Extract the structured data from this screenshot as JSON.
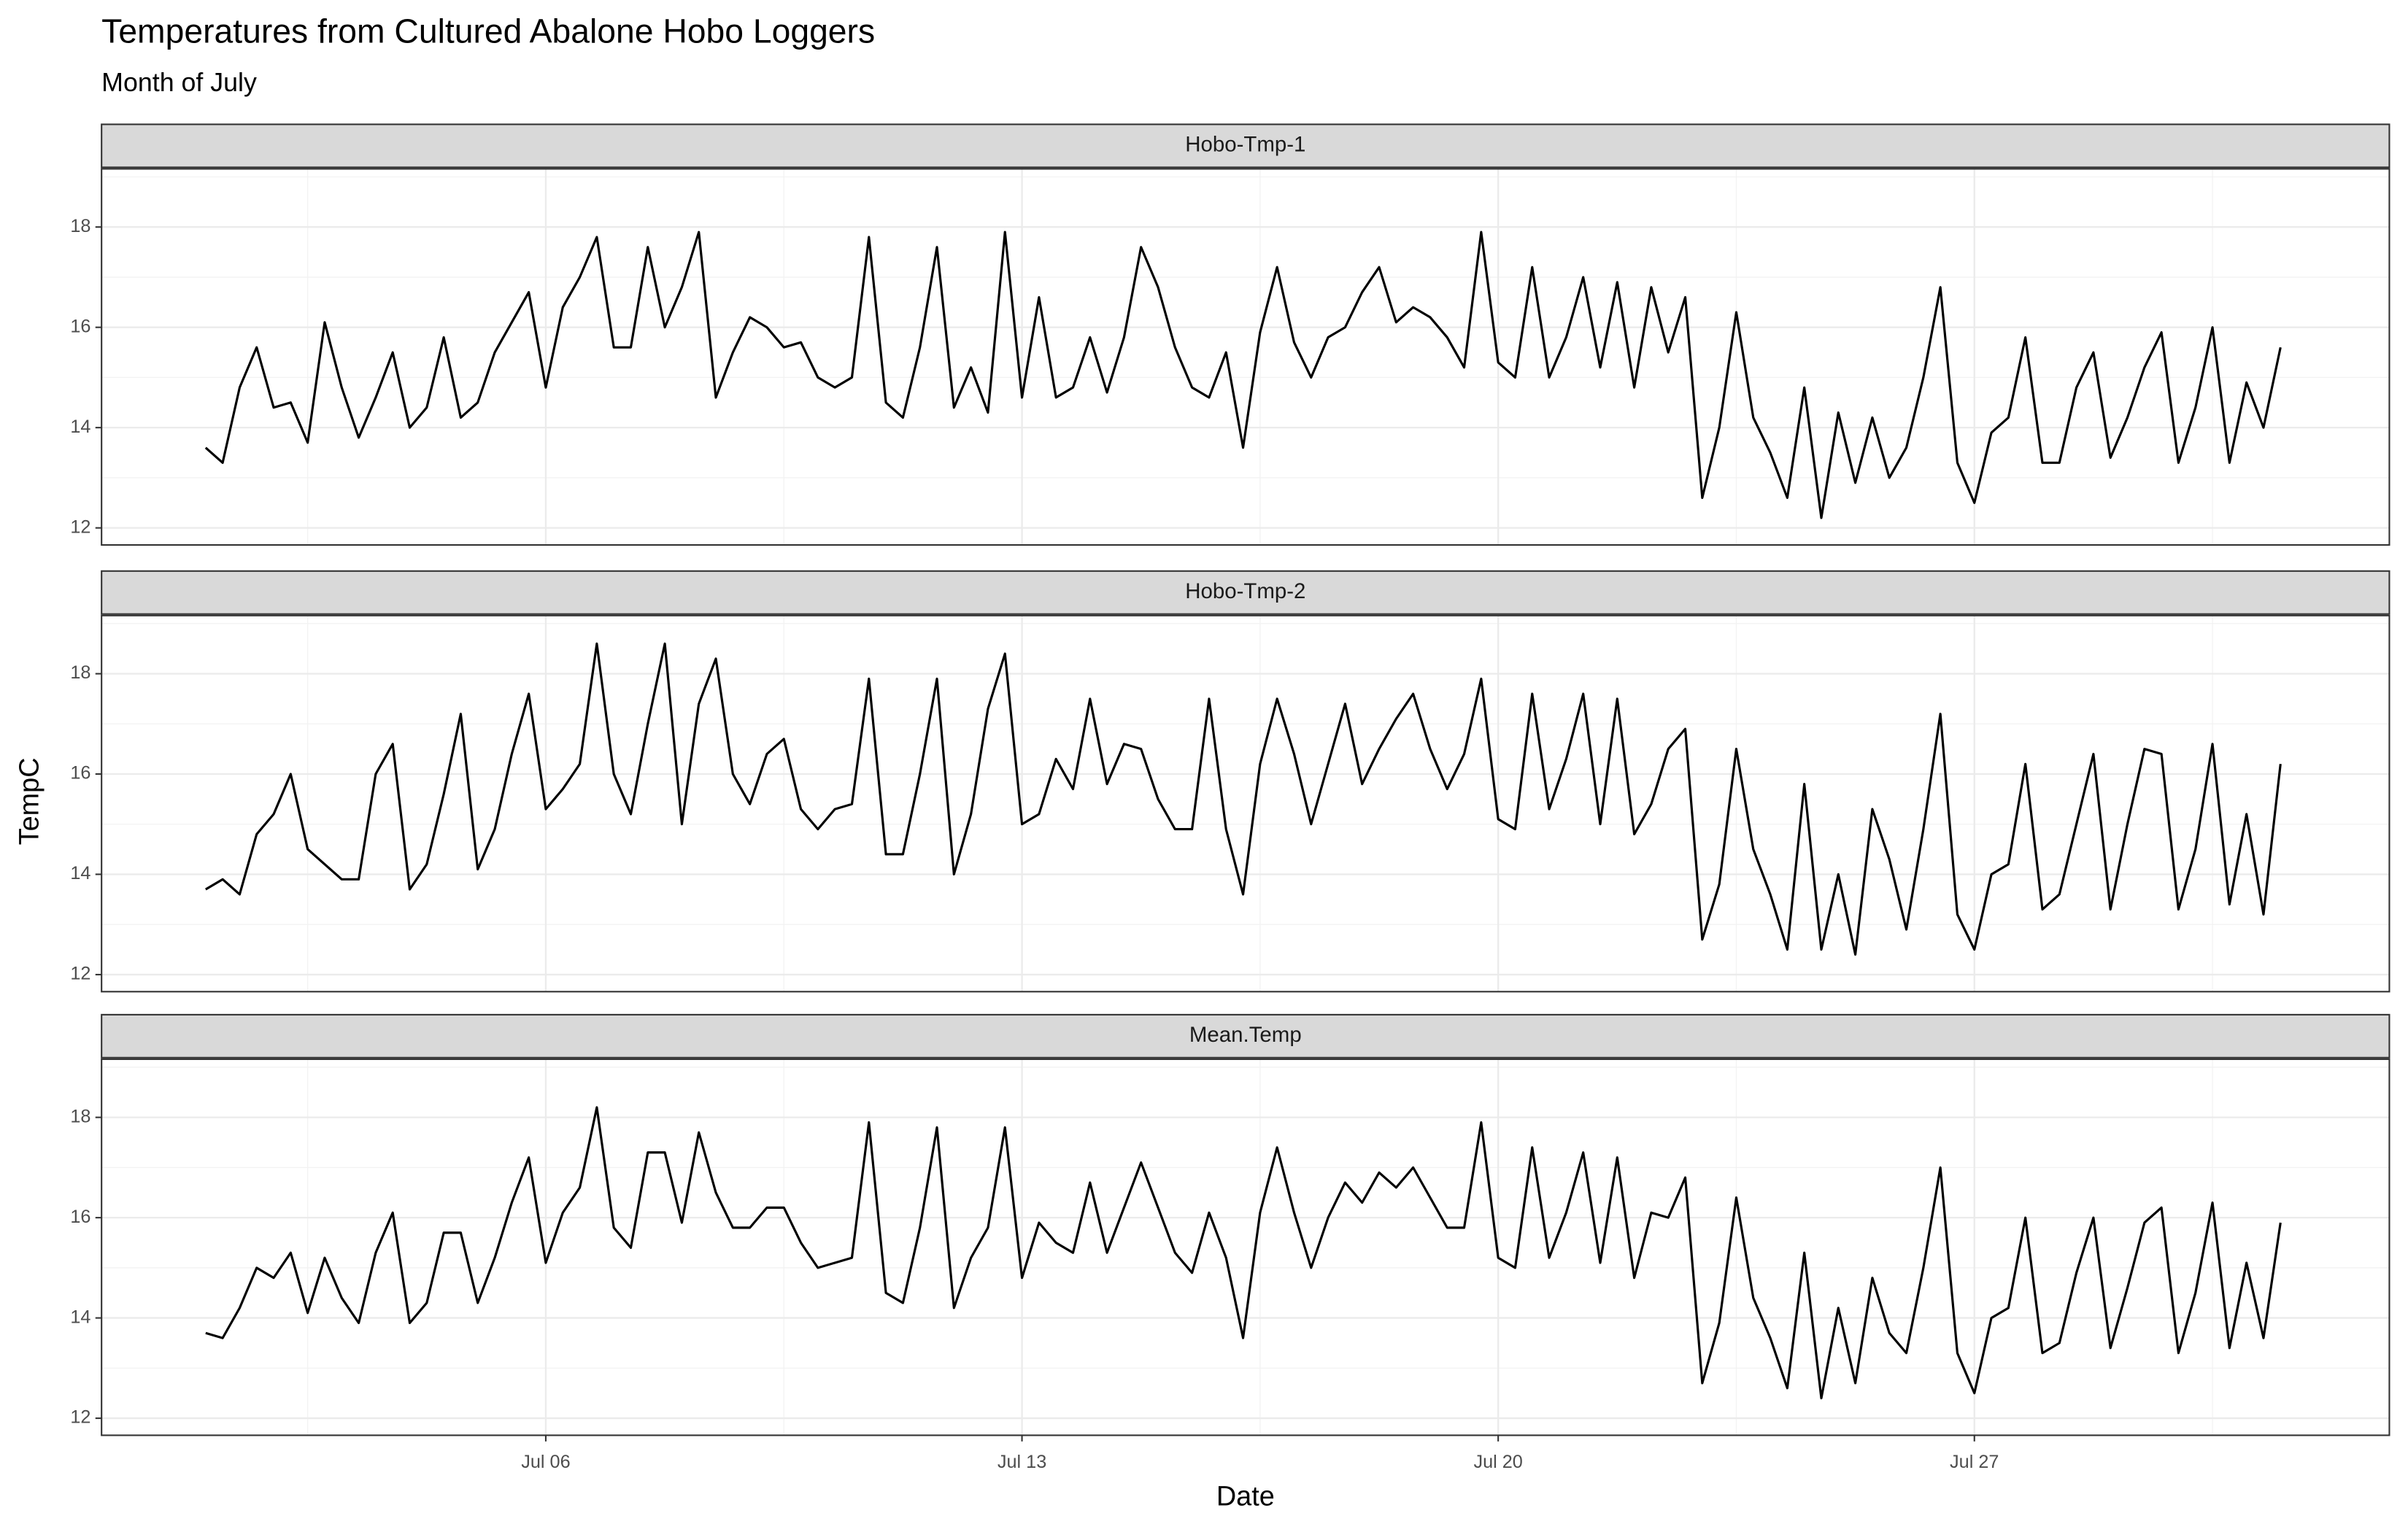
{
  "chart_data": {
    "type": "line",
    "title": "Temperatures from Cultured Abalone Hobo Loggers",
    "subtitle": "Month of July",
    "x_label": "Date",
    "y_label": "TempC",
    "xlim": [
      -0.53,
      33.1
    ],
    "ylim": [
      11.66,
      19.16
    ],
    "xticks": [
      {
        "value": 6,
        "label": "Jul 06"
      },
      {
        "value": 13,
        "label": "Jul 13"
      },
      {
        "value": 20,
        "label": "Jul 20"
      },
      {
        "value": 27,
        "label": "Jul 27"
      }
    ],
    "xminor": [
      2.5,
      9.5,
      16.5,
      23.5,
      30.5
    ],
    "yticks": [
      12,
      14,
      16,
      18
    ],
    "yminor": [
      13,
      15,
      17,
      19
    ],
    "grid": true,
    "x": [
      1,
      1.25,
      1.5,
      1.75,
      2,
      2.25,
      2.5,
      2.75,
      3,
      3.25,
      3.5,
      3.75,
      4,
      4.25,
      4.5,
      4.75,
      5,
      5.25,
      5.5,
      5.75,
      6,
      6.25,
      6.5,
      6.75,
      7,
      7.25,
      7.5,
      7.75,
      8,
      8.25,
      8.5,
      8.75,
      9,
      9.25,
      9.5,
      9.75,
      10,
      10.25,
      10.5,
      10.75,
      11,
      11.25,
      11.5,
      11.75,
      12,
      12.25,
      12.5,
      12.75,
      13,
      13.25,
      13.5,
      13.75,
      14,
      14.25,
      14.5,
      14.75,
      15,
      15.25,
      15.5,
      15.75,
      16,
      16.25,
      16.5,
      16.75,
      17,
      17.25,
      17.5,
      17.75,
      18,
      18.25,
      18.5,
      18.75,
      19,
      19.25,
      19.5,
      19.75,
      20,
      20.25,
      20.5,
      20.75,
      21,
      21.25,
      21.5,
      21.75,
      22,
      22.25,
      22.5,
      22.75,
      23,
      23.25,
      23.5,
      23.75,
      24,
      24.25,
      24.5,
      24.75,
      25,
      25.25,
      25.5,
      25.75,
      26,
      26.25,
      26.5,
      26.75,
      27,
      27.25,
      27.5,
      27.75,
      28,
      28.25,
      28.5,
      28.75,
      29,
      29.25,
      29.5,
      29.75,
      30,
      30.25,
      30.5,
      30.75,
      31,
      31.25,
      31.5
    ],
    "series": [
      {
        "name": "Hobo-Tmp-1",
        "color": "#000000",
        "values": [
          13.6,
          13.3,
          14.8,
          15.6,
          14.4,
          14.5,
          13.7,
          16.1,
          14.8,
          13.8,
          14.6,
          15.5,
          14.0,
          14.4,
          15.8,
          14.2,
          14.5,
          15.5,
          16.1,
          16.7,
          14.8,
          16.4,
          17.0,
          17.8,
          15.6,
          15.6,
          17.6,
          16.0,
          16.8,
          17.9,
          14.6,
          15.5,
          16.2,
          16.0,
          15.6,
          15.7,
          15.0,
          14.8,
          15.0,
          17.8,
          14.5,
          14.2,
          15.6,
          17.6,
          14.4,
          15.2,
          14.3,
          17.9,
          14.6,
          16.6,
          14.6,
          14.8,
          15.8,
          14.7,
          15.8,
          17.6,
          16.8,
          15.6,
          14.8,
          14.6,
          15.5,
          13.6,
          15.9,
          17.2,
          15.7,
          15.0,
          15.8,
          16.0,
          16.7,
          17.2,
          16.1,
          16.4,
          16.2,
          15.8,
          15.2,
          17.9,
          15.3,
          15.0,
          17.2,
          15.0,
          15.8,
          17.0,
          15.2,
          16.9,
          14.8,
          16.8,
          15.5,
          16.6,
          12.6,
          14.0,
          16.3,
          14.2,
          13.5,
          12.6,
          14.8,
          12.2,
          14.3,
          12.9,
          14.2,
          13.0,
          13.6,
          15.0,
          16.8,
          13.3,
          12.5,
          13.9,
          14.2,
          15.8,
          13.3,
          13.3,
          14.8,
          15.5,
          13.4,
          14.2,
          15.2,
          15.9,
          13.3,
          14.4,
          16.0,
          13.3,
          14.9,
          14.0,
          15.6
        ]
      },
      {
        "name": "Hobo-Tmp-2",
        "color": "#000000",
        "values": [
          13.7,
          13.9,
          13.6,
          14.8,
          15.2,
          16.0,
          14.5,
          14.2,
          13.9,
          13.9,
          16.0,
          16.6,
          13.7,
          14.2,
          15.6,
          17.2,
          14.1,
          14.9,
          16.4,
          17.6,
          15.3,
          15.7,
          16.2,
          18.6,
          16.0,
          15.2,
          17.0,
          18.6,
          15.0,
          17.4,
          18.3,
          16.0,
          15.4,
          16.4,
          16.7,
          15.3,
          14.9,
          15.3,
          15.4,
          17.9,
          14.4,
          14.4,
          16.0,
          17.9,
          14.0,
          15.2,
          17.3,
          18.4,
          15.0,
          15.2,
          16.3,
          15.7,
          17.5,
          15.8,
          16.6,
          16.5,
          15.5,
          14.9,
          14.9,
          17.5,
          14.9,
          13.6,
          16.2,
          17.5,
          16.4,
          15.0,
          16.2,
          17.4,
          15.8,
          16.5,
          17.1,
          17.6,
          16.5,
          15.7,
          16.4,
          17.9,
          15.1,
          14.9,
          17.6,
          15.3,
          16.3,
          17.6,
          15.0,
          17.5,
          14.8,
          15.4,
          16.5,
          16.9,
          12.7,
          13.8,
          16.5,
          14.5,
          13.6,
          12.5,
          15.8,
          12.5,
          14.0,
          12.4,
          15.3,
          14.3,
          12.9,
          14.9,
          17.2,
          13.2,
          12.5,
          14.0,
          14.2,
          16.2,
          13.3,
          13.6,
          15.0,
          16.4,
          13.3,
          15.0,
          16.5,
          16.4,
          13.3,
          14.5,
          16.6,
          13.4,
          15.2,
          13.2,
          16.2
        ]
      },
      {
        "name": "Mean.Temp",
        "color": "#000000",
        "values": [
          13.7,
          13.6,
          14.2,
          15.0,
          14.8,
          15.3,
          14.1,
          15.2,
          14.4,
          13.9,
          15.3,
          16.1,
          13.9,
          14.3,
          15.7,
          15.7,
          14.3,
          15.2,
          16.3,
          17.2,
          15.1,
          16.1,
          16.6,
          18.2,
          15.8,
          15.4,
          17.3,
          17.3,
          15.9,
          17.7,
          16.5,
          15.8,
          15.8,
          16.2,
          16.2,
          15.5,
          15.0,
          15.1,
          15.2,
          17.9,
          14.5,
          14.3,
          15.8,
          17.8,
          14.2,
          15.2,
          15.8,
          17.8,
          14.8,
          15.9,
          15.5,
          15.3,
          16.7,
          15.3,
          16.2,
          17.1,
          16.2,
          15.3,
          14.9,
          16.1,
          15.2,
          13.6,
          16.1,
          17.4,
          16.1,
          15.0,
          16.0,
          16.7,
          16.3,
          16.9,
          16.6,
          17.0,
          16.4,
          15.8,
          15.8,
          17.9,
          15.2,
          15.0,
          17.4,
          15.2,
          16.1,
          17.3,
          15.1,
          17.2,
          14.8,
          16.1,
          16.0,
          16.8,
          12.7,
          13.9,
          16.4,
          14.4,
          13.6,
          12.6,
          15.3,
          12.4,
          14.2,
          12.7,
          14.8,
          13.7,
          13.3,
          15.0,
          17.0,
          13.3,
          12.5,
          14.0,
          14.2,
          16.0,
          13.3,
          13.5,
          14.9,
          16.0,
          13.4,
          14.6,
          15.9,
          16.2,
          13.3,
          14.5,
          16.3,
          13.4,
          15.1,
          13.6,
          15.9
        ]
      }
    ]
  }
}
